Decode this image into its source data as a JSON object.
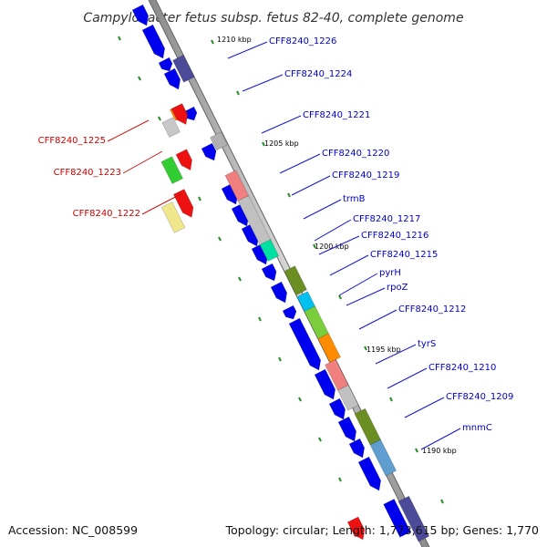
{
  "title": "Campylobacter fetus subsp. fetus 82-40, complete genome",
  "footer": {
    "accession": "Accession: NC_008599",
    "topology": "Topology: circular; Length: 1,773,615 bp; Genes: 1,770"
  },
  "colors": {
    "backbone": "#a9a9a9",
    "forward_cds": "#0000ee",
    "dark_cds": "#4b4b9a",
    "label_blue": "#0000cc",
    "label_red": "#cc0000",
    "dot_green": "#2a8a2a"
  },
  "ticks": [
    "1210 kbp",
    "1205 kbp",
    "1200 kbp",
    "1195 kbp",
    "1190 kbp"
  ],
  "gene_labels_right": [
    "CFF8240_1226",
    "CFF8240_1224",
    "CFF8240_1221",
    "CFF8240_1220",
    "CFF8240_1219",
    "trmB",
    "CFF8240_1217",
    "CFF8240_1216",
    "CFF8240_1215",
    "pyrH",
    "rpoZ",
    "CFF8240_1212",
    "tyrS",
    "CFF8240_1210",
    "CFF8240_1209",
    "mnmC"
  ],
  "gene_labels_left": [
    "CFF8240_1225",
    "CFF8240_1223",
    "CFF8240_1222"
  ]
}
